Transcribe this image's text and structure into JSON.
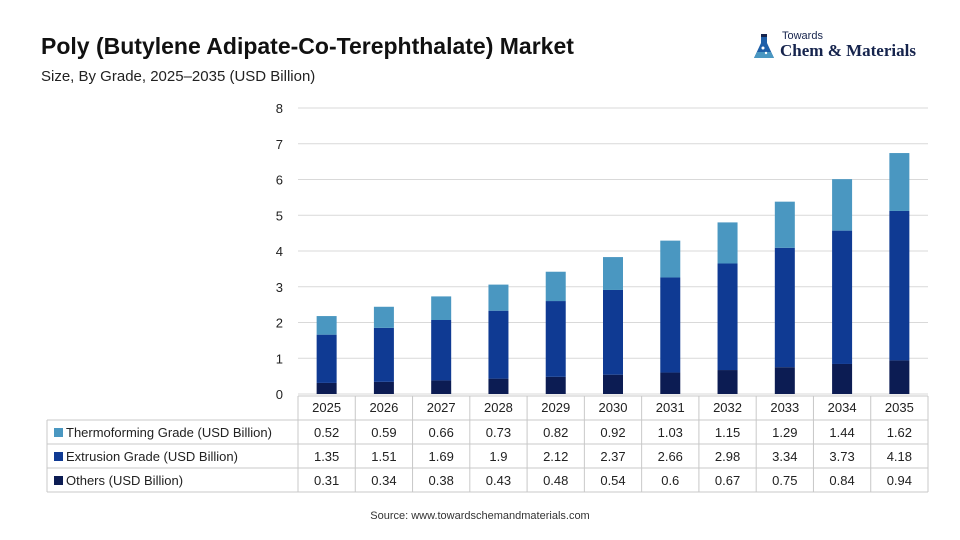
{
  "header": {
    "title": "Poly (Butylene Adipate-Co-Terephthalate) Market",
    "subtitle": "Size, By Grade, 2025–2035 (USD Billion)"
  },
  "logo": {
    "small": "Towards",
    "big": "Chem & Materials",
    "icon": "flask-icon"
  },
  "source": "Source: www.towardschemandmaterials.com",
  "colors": {
    "thermoforming": "#4a97c1",
    "extrusion": "#0f3a93",
    "others": "#0c1c53",
    "grid": "#d9d9d9",
    "table_border": "#c8c8c8"
  },
  "chart_data": {
    "type": "bar",
    "stacked": true,
    "categories": [
      "2025",
      "2026",
      "2027",
      "2028",
      "2029",
      "2030",
      "2031",
      "2032",
      "2033",
      "2034",
      "2035"
    ],
    "series": [
      {
        "name": "Others (USD Billion)",
        "color_key": "others",
        "values": [
          0.31,
          0.34,
          0.38,
          0.43,
          0.48,
          0.54,
          0.6,
          0.67,
          0.75,
          0.84,
          0.94
        ]
      },
      {
        "name": "Extrusion Grade (USD Billion)",
        "color_key": "extrusion",
        "values": [
          1.35,
          1.51,
          1.69,
          1.9,
          2.12,
          2.37,
          2.66,
          2.98,
          3.34,
          3.73,
          4.18
        ]
      },
      {
        "name": "Thermoforming Grade (USD Billion)",
        "color_key": "thermoforming",
        "values": [
          0.52,
          0.59,
          0.66,
          0.73,
          0.82,
          0.92,
          1.03,
          1.15,
          1.29,
          1.44,
          1.62
        ]
      }
    ],
    "table_order": [
      "Thermoforming Grade (USD Billion)",
      "Extrusion Grade (USD Billion)",
      "Others (USD Billion)"
    ],
    "ylim": [
      0,
      8
    ],
    "yticks": [
      0,
      1,
      2,
      3,
      4,
      5,
      6,
      7,
      8
    ],
    "grid": true,
    "data_table": true
  }
}
